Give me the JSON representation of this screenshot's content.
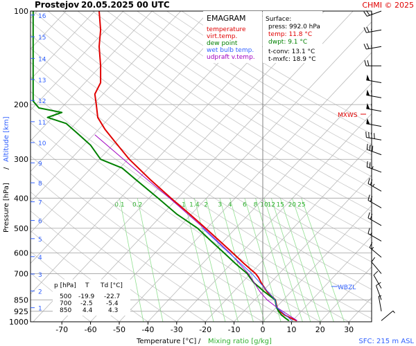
{
  "header": {
    "station": "Prostejov",
    "datetime": "20.05.2025 00 UTC",
    "copyright": "CHMI © 2025"
  },
  "legend": {
    "title": "EMAGRAM",
    "items": [
      {
        "label": "temperature",
        "color": "#e00000"
      },
      {
        "label": "virt.temp.",
        "color": "#e00000"
      },
      {
        "label": "dew point",
        "color": "#008000"
      },
      {
        "label": "wet bulb temp.",
        "color": "#3060ff"
      },
      {
        "label": "udpraft v.temp.",
        "color": "#a000c0"
      }
    ]
  },
  "surface": {
    "title": "Surface:",
    "press": "press: 992.0 hPa",
    "temp": "temp: 11.8 °C",
    "dwpt": "dwpt: 9.1 °C",
    "tconv": "t-conv: 13.1 °C",
    "tmxfc": "t-mxfc: 18.9 °C"
  },
  "table": {
    "headers": [
      "p [hPa]",
      "T",
      "Td [°C]"
    ],
    "rows": [
      [
        "500",
        "-19.9",
        "-22.7"
      ],
      [
        "700",
        "-2.5",
        "-5.4"
      ],
      [
        "850",
        "4.4",
        "4.3"
      ]
    ]
  },
  "annotations": {
    "wbzl": "WBZL",
    "mxws": "MXWS",
    "sfc": "SFC: 215 m ASL"
  },
  "chart_data": {
    "type": "line",
    "title": "Prostejov 20.05.2025 00 UTC",
    "xlabel": "Temperature [°C]",
    "xlabel2": "Mixing ratio [g/kg]",
    "ylabel": "Pressure [hPa]",
    "ylabel2": "Altitude [km]",
    "x_range": [
      -80,
      30
    ],
    "y_range": [
      1000,
      100
    ],
    "y_scale": "log",
    "x_ticks": [
      -70,
      -60,
      -50,
      -40,
      -30,
      -20,
      -10,
      0,
      10,
      20,
      30
    ],
    "pressure_ticks": [
      100,
      200,
      300,
      400,
      500,
      600,
      700,
      850,
      925,
      1000
    ],
    "altitude_ticks": [
      {
        "km": 1,
        "p": 901
      },
      {
        "km": 2,
        "p": 796
      },
      {
        "km": 3,
        "p": 702
      },
      {
        "km": 4,
        "p": 617
      },
      {
        "km": 5,
        "p": 540
      },
      {
        "km": 6,
        "p": 472
      },
      {
        "km": 7,
        "p": 411
      },
      {
        "km": 8,
        "p": 357
      },
      {
        "km": 9,
        "p": 308
      },
      {
        "km": 10,
        "p": 265
      },
      {
        "km": 11,
        "p": 227
      },
      {
        "km": 12,
        "p": 194
      },
      {
        "km": 13,
        "p": 166
      },
      {
        "km": 14,
        "p": 142
      },
      {
        "km": 15,
        "p": 121
      },
      {
        "km": 16,
        "p": 103
      }
    ],
    "mixing_ratio_labels": [
      "0.1",
      "0.2",
      "1",
      "1.4",
      "2",
      "3",
      "4",
      "6",
      "8",
      "10",
      "12",
      "15",
      "20",
      "25"
    ],
    "series": [
      {
        "name": "temperature",
        "color": "#e00000",
        "points": [
          [
            992,
            11.8
          ],
          [
            975,
            10.0
          ],
          [
            950,
            7.5
          ],
          [
            925,
            6.0
          ],
          [
            900,
            5.0
          ],
          [
            850,
            4.4
          ],
          [
            800,
            1.5
          ],
          [
            750,
            -0.5
          ],
          [
            720,
            -1.5
          ],
          [
            700,
            -2.5
          ],
          [
            650,
            -6.5
          ],
          [
            600,
            -10.5
          ],
          [
            550,
            -15.0
          ],
          [
            500,
            -19.9
          ],
          [
            450,
            -25.5
          ],
          [
            400,
            -32.0
          ],
          [
            350,
            -39.0
          ],
          [
            300,
            -46.5
          ],
          [
            260,
            -52.0
          ],
          [
            240,
            -55.0
          ],
          [
            220,
            -57.5
          ],
          [
            200,
            -58.0
          ],
          [
            185,
            -58.5
          ],
          [
            170,
            -56.5
          ],
          [
            150,
            -56.5
          ],
          [
            130,
            -57.0
          ],
          [
            115,
            -56.5
          ],
          [
            100,
            -57.0
          ]
        ]
      },
      {
        "name": "dew point",
        "color": "#008000",
        "points": [
          [
            992,
            9.1
          ],
          [
            975,
            8.0
          ],
          [
            950,
            6.5
          ],
          [
            925,
            5.5
          ],
          [
            900,
            4.8
          ],
          [
            850,
            4.3
          ],
          [
            800,
            0.5
          ],
          [
            750,
            -3.0
          ],
          [
            720,
            -4.5
          ],
          [
            700,
            -5.4
          ],
          [
            650,
            -9.5
          ],
          [
            600,
            -13.5
          ],
          [
            550,
            -18.0
          ],
          [
            500,
            -22.7
          ],
          [
            450,
            -30.0
          ],
          [
            400,
            -36.5
          ],
          [
            350,
            -44.0
          ],
          [
            320,
            -49.0
          ],
          [
            300,
            -56.5
          ],
          [
            270,
            -60.0
          ],
          [
            250,
            -64.0
          ],
          [
            230,
            -68.5
          ],
          [
            220,
            -75.0
          ],
          [
            212,
            -70.0
          ],
          [
            205,
            -78.0
          ],
          [
            195,
            -80.0
          ],
          [
            160,
            -80.0
          ],
          [
            100,
            -80.0
          ]
        ]
      },
      {
        "name": "udpraft v.temp.",
        "color": "#a000c0",
        "points": [
          [
            992,
            12.0
          ],
          [
            900,
            5.0
          ],
          [
            850,
            1.5
          ],
          [
            800,
            -1.0
          ],
          [
            700,
            -5.0
          ],
          [
            600,
            -11.5
          ],
          [
            500,
            -20.5
          ],
          [
            400,
            -32.5
          ],
          [
            350,
            -40.0
          ],
          [
            300,
            -48.5
          ],
          [
            250,
            -58.5
          ]
        ]
      },
      {
        "name": "wet bulb temp.",
        "color": "#3060ff",
        "points": [
          [
            992,
            10.2
          ],
          [
            900,
            4.9
          ],
          [
            850,
            4.3
          ],
          [
            700,
            -3.8
          ],
          [
            600,
            -11.8
          ],
          [
            500,
            -21.0
          ]
        ]
      }
    ],
    "wind_barbs": [
      {
        "p": 100,
        "dir": 250,
        "kt": 25
      },
      {
        "p": 115,
        "dir": 260,
        "kt": 25
      },
      {
        "p": 130,
        "dir": 260,
        "kt": 25
      },
      {
        "p": 150,
        "dir": 270,
        "kt": 25
      },
      {
        "p": 170,
        "dir": 280,
        "kt": 50
      },
      {
        "p": 190,
        "dir": 280,
        "kt": 60
      },
      {
        "p": 210,
        "dir": 280,
        "kt": 60
      },
      {
        "p": 235,
        "dir": 280,
        "kt": 50
      },
      {
        "p": 260,
        "dir": 280,
        "kt": 40
      },
      {
        "p": 290,
        "dir": 290,
        "kt": 30
      },
      {
        "p": 330,
        "dir": 290,
        "kt": 25
      },
      {
        "p": 380,
        "dir": 300,
        "kt": 25
      },
      {
        "p": 430,
        "dir": 300,
        "kt": 20
      },
      {
        "p": 490,
        "dir": 300,
        "kt": 20
      },
      {
        "p": 550,
        "dir": 300,
        "kt": 15
      },
      {
        "p": 620,
        "dir": 310,
        "kt": 15
      },
      {
        "p": 700,
        "dir": 320,
        "kt": 10
      },
      {
        "p": 780,
        "dir": 330,
        "kt": 10
      },
      {
        "p": 850,
        "dir": 340,
        "kt": 10
      },
      {
        "p": 925,
        "dir": 350,
        "kt": 5
      },
      {
        "p": 992,
        "dir": 50,
        "kt": 5
      }
    ]
  }
}
